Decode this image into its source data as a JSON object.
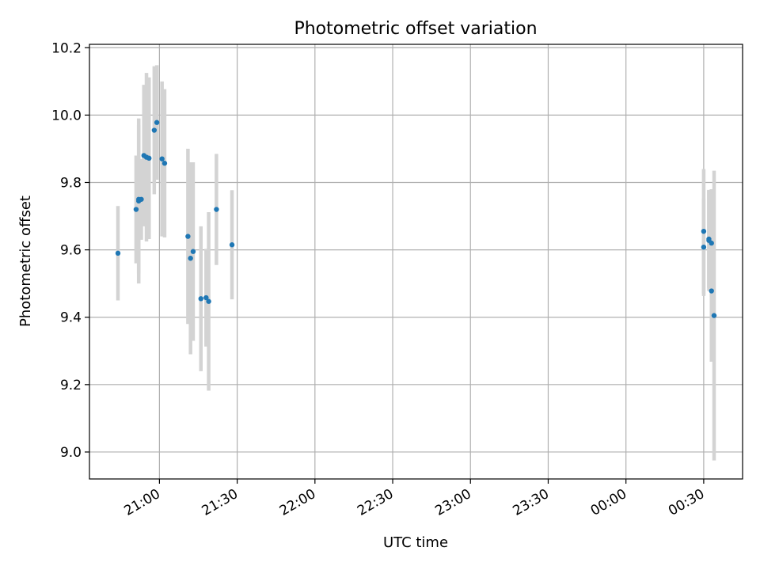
{
  "chart_data": {
    "type": "scatter",
    "title": "Photometric offset variation",
    "xlabel": "UTC time",
    "ylabel": "Photometric offset",
    "xlim": [
      "20:33",
      "00:45"
    ],
    "ylim": [
      8.92,
      10.21
    ],
    "x_ticks": [
      "21:00",
      "21:30",
      "22:00",
      "22:30",
      "23:00",
      "23:30",
      "00:00",
      "00:30"
    ],
    "y_ticks": [
      9.0,
      9.2,
      9.4,
      9.6,
      9.8,
      10.0,
      10.2
    ],
    "y_tick_labels": [
      "9.0",
      "9.2",
      "9.4",
      "9.6",
      "9.8",
      "10.0",
      "10.2"
    ],
    "grid": true,
    "colors": {
      "point": "#1f77b4",
      "errorbar": "#d3d3d3",
      "grid": "#b0b0b0"
    },
    "points": [
      {
        "time": "20:44",
        "y": 9.59,
        "err": 0.14
      },
      {
        "time": "20:51",
        "y": 9.72,
        "err": 0.16
      },
      {
        "time": "20:52",
        "y": 9.745,
        "err": 0.245
      },
      {
        "time": "20:52",
        "y": 9.75,
        "err": 0.22
      },
      {
        "time": "20:53",
        "y": 9.75,
        "err": 0.12
      },
      {
        "time": "20:54",
        "y": 9.88,
        "err": 0.21
      },
      {
        "time": "20:55",
        "y": 9.875,
        "err": 0.25
      },
      {
        "time": "20:56",
        "y": 9.872,
        "err": 0.24
      },
      {
        "time": "20:58",
        "y": 9.955,
        "err": 0.19
      },
      {
        "time": "20:59",
        "y": 9.978,
        "err": 0.17
      },
      {
        "time": "21:01",
        "y": 9.87,
        "err": 0.23
      },
      {
        "time": "21:02",
        "y": 9.857,
        "err": 0.22
      },
      {
        "time": "21:11",
        "y": 9.64,
        "err": 0.26
      },
      {
        "time": "21:12",
        "y": 9.575,
        "err": 0.285
      },
      {
        "time": "21:13",
        "y": 9.595,
        "err": 0.265
      },
      {
        "time": "21:16",
        "y": 9.455,
        "err": 0.215
      },
      {
        "time": "21:18",
        "y": 9.458,
        "err": 0.145
      },
      {
        "time": "21:19",
        "y": 9.447,
        "err": 0.265
      },
      {
        "time": "21:22",
        "y": 9.72,
        "err": 0.165
      },
      {
        "time": "21:28",
        "y": 9.615,
        "err": 0.162
      },
      {
        "time": "00:30",
        "y": 9.655,
        "err": 0.185
      },
      {
        "time": "00:30",
        "y": 9.608,
        "err": 0.145
      },
      {
        "time": "00:32",
        "y": 9.632,
        "err": 0.145
      },
      {
        "time": "00:32",
        "y": 9.628,
        "err": 0.15
      },
      {
        "time": "00:33",
        "y": 9.62,
        "err": 0.16
      },
      {
        "time": "00:33",
        "y": 9.478,
        "err": 0.21
      },
      {
        "time": "00:34",
        "y": 9.405,
        "err": 0.43
      }
    ]
  }
}
